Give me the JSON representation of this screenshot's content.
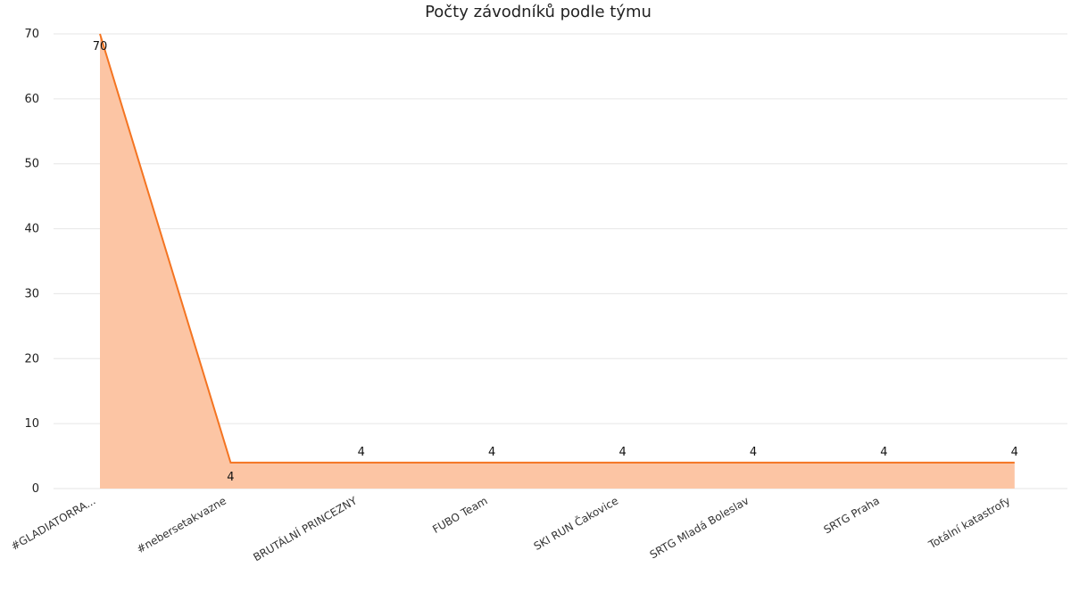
{
  "chart_data": {
    "type": "area",
    "title": "Počty závodníků podle týmu",
    "categories": [
      "#GLADIATORRA...",
      "#nebersetakvazne",
      "BRUTÁLNÍ PRINCEZNY",
      "FUBO Team",
      "SKI RUN Čakovice",
      "SRTG Mladá Boleslav",
      "SRTG Praha",
      "Totální katastrofy"
    ],
    "values": [
      70,
      4,
      4,
      4,
      4,
      4,
      4,
      4
    ],
    "ylim": [
      0,
      70
    ],
    "yticks": [
      0,
      10,
      20,
      30,
      40,
      50,
      60,
      70
    ],
    "grid": true,
    "data_labels": true,
    "colors": {
      "line": "#f47421",
      "fill": "#fcc5a4"
    }
  }
}
